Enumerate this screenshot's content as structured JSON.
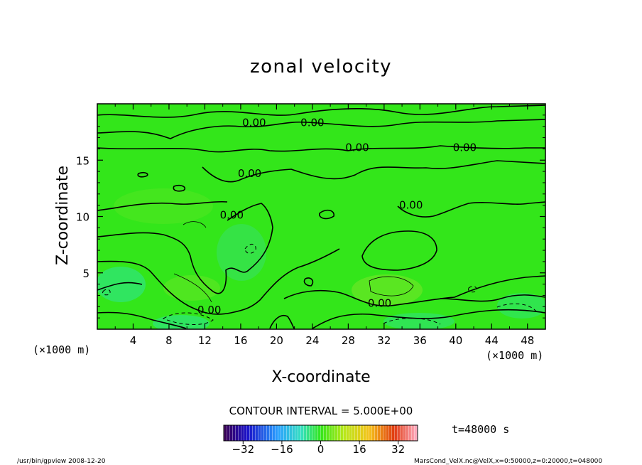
{
  "chart_data": {
    "type": "contour",
    "title": "zonal velocity",
    "xlabel": "X-coordinate",
    "ylabel": "Z-coordinate",
    "x_unit": "(×1000 m)",
    "x_unit_left": "(×1000 m)",
    "xlim": [
      0,
      50
    ],
    "ylim": [
      0,
      20
    ],
    "xticks": [
      4,
      8,
      12,
      16,
      20,
      24,
      28,
      32,
      36,
      40,
      44,
      48
    ],
    "yticks": [
      5,
      10,
      15
    ],
    "contour_interval_text": "CONTOUR INTERVAL = 5.000E+00",
    "contour_labels": [
      {
        "text": "0.00",
        "x": 17.5,
        "y": 18.0
      },
      {
        "text": "0.00",
        "x": 24.0,
        "y": 18.0
      },
      {
        "text": "0.00",
        "x": 29.0,
        "y": 15.8
      },
      {
        "text": "0.00",
        "x": 41.0,
        "y": 15.8
      },
      {
        "text": "0.00",
        "x": 17.0,
        "y": 13.5
      },
      {
        "text": "0.00",
        "x": 35.0,
        "y": 10.7
      },
      {
        "text": "0.00",
        "x": 15.0,
        "y": 9.8
      },
      {
        "text": "0.00",
        "x": 12.5,
        "y": 1.4
      },
      {
        "text": "0.00",
        "x": 31.5,
        "y": 2.0
      }
    ],
    "colorbar": {
      "range": [
        -40,
        40
      ],
      "ticks": [
        -32,
        -16,
        0,
        16,
        32
      ],
      "tick_labels": [
        "−32",
        "−16",
        "0",
        "16",
        "32"
      ]
    },
    "time_label": "t=48000 s",
    "grid": false
  },
  "footer": {
    "left": "/usr/bin/gpview   2008-12-20",
    "right": "MarsCond_VelX.nc@VelX,x=0:50000,z=0:20000,t=048000"
  },
  "colors": {
    "field_base": "#33e61a",
    "field_light": "#6be626",
    "field_cyan": "#2de39a",
    "contour": "#000000"
  }
}
